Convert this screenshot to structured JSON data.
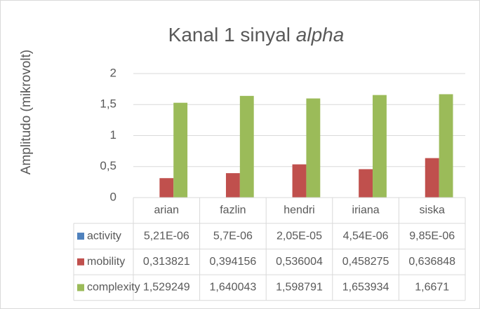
{
  "chart_data": {
    "type": "bar",
    "title": {
      "text": "Kanal 1 sinyal",
      "emphasis": "alpha"
    },
    "y_label": "Amplitudo (mikrovolt)",
    "categories": [
      "arian",
      "fazlin",
      "hendri",
      "iriana",
      "siska"
    ],
    "series": [
      {
        "name": "activity",
        "color": "#4f81bd",
        "values": [
          5.21e-06,
          5.7e-06,
          2.05e-05,
          4.54e-06,
          9.85e-06
        ],
        "value_labels": [
          "5,21E-06",
          "5,7E-06",
          "2,05E-05",
          "4,54E-06",
          "9,85E-06"
        ]
      },
      {
        "name": "mobility",
        "color": "#c0504d",
        "values": [
          0.313821,
          0.394156,
          0.536004,
          0.458275,
          0.636848
        ],
        "value_labels": [
          "0,313821",
          "0,394156",
          "0,536004",
          "0,458275",
          "0,636848"
        ]
      },
      {
        "name": "complexity",
        "color": "#9bbb59",
        "values": [
          1.529249,
          1.640043,
          1.598791,
          1.653934,
          1.6671
        ],
        "value_labels": [
          "1,529249",
          "1,640043",
          "1,598791",
          "1,653934",
          "1,6671"
        ]
      }
    ],
    "ylim": [
      0,
      2
    ],
    "yticks": [
      0,
      {
        "value": 0.5,
        "label": "0,5"
      },
      1,
      {
        "value": 1.5,
        "label": "1,5"
      },
      2
    ],
    "grid": true
  }
}
